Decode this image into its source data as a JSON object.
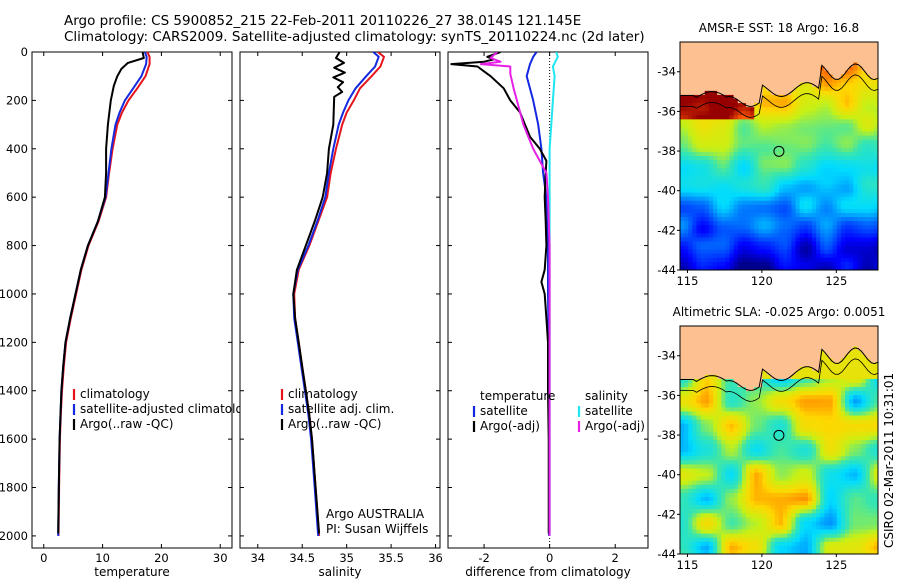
{
  "header": {
    "line1": "Argo profile: CS 5900852_215 22-Feb-2011 20110226_27 38.014S 121.145E",
    "line2": "Climatology: CARS2009. Satellite-adjusted climatology: synTS_20110224.nc (2d later)"
  },
  "colors": {
    "red": "#e8141c",
    "blue": "#1428e0",
    "black": "#000000",
    "magenta": "#e620e6",
    "cyan": "#20e6f0",
    "land": "#fcc091"
  },
  "chart_data": [
    {
      "type": "line",
      "xlabel": "temperature",
      "ylabel": "",
      "xlim": [
        -2,
        32
      ],
      "ylim": [
        0,
        2050
      ],
      "y_reversed": true,
      "xticks": [
        0,
        10,
        20,
        30
      ],
      "yticks": [
        0,
        200,
        400,
        600,
        800,
        1000,
        1200,
        1400,
        1600,
        1800,
        2000
      ],
      "legend": {
        "position": "lower-right",
        "entries": [
          "climatology",
          "satellite-adjusted climatology",
          "Argo(..raw -QC)"
        ]
      },
      "series": [
        {
          "name": "climatology",
          "color": "red",
          "points": [
            [
              17.6,
              0
            ],
            [
              18.0,
              20
            ],
            [
              18.0,
              50
            ],
            [
              17.3,
              100
            ],
            [
              15.9,
              150
            ],
            [
              14.4,
              200
            ],
            [
              13.3,
              250
            ],
            [
              12.5,
              300
            ],
            [
              11.7,
              400
            ],
            [
              11.1,
              500
            ],
            [
              10.6,
              600
            ],
            [
              9.3,
              700
            ],
            [
              7.6,
              800
            ],
            [
              6.4,
              900
            ],
            [
              5.5,
              1000
            ],
            [
              4.6,
              1100
            ],
            [
              3.8,
              1200
            ],
            [
              3.4,
              1300
            ],
            [
              3.1,
              1400
            ],
            [
              2.9,
              1500
            ],
            [
              2.75,
              1600
            ],
            [
              2.6,
              1800
            ],
            [
              2.5,
              2000
            ]
          ]
        },
        {
          "name": "satellite-adjusted climatology",
          "color": "blue",
          "points": [
            [
              17.2,
              0
            ],
            [
              17.5,
              20
            ],
            [
              17.4,
              50
            ],
            [
              16.6,
              100
            ],
            [
              15.2,
              150
            ],
            [
              13.8,
              200
            ],
            [
              12.9,
              250
            ],
            [
              12.2,
              300
            ],
            [
              11.5,
              400
            ],
            [
              11.0,
              500
            ],
            [
              10.5,
              600
            ],
            [
              9.2,
              700
            ],
            [
              7.5,
              800
            ],
            [
              6.3,
              900
            ],
            [
              5.4,
              1000
            ],
            [
              4.5,
              1100
            ],
            [
              3.7,
              1200
            ],
            [
              3.3,
              1300
            ],
            [
              3.0,
              1400
            ],
            [
              2.85,
              1500
            ],
            [
              2.7,
              1600
            ],
            [
              2.55,
              1800
            ],
            [
              2.45,
              2000
            ]
          ]
        },
        {
          "name": "Argo(..raw -QC)",
          "color": "black",
          "points": [
            [
              16.8,
              0
            ],
            [
              17.0,
              25
            ],
            [
              14.3,
              45
            ],
            [
              13.2,
              70
            ],
            [
              12.5,
              100
            ],
            [
              11.9,
              140
            ],
            [
              11.4,
              200
            ],
            [
              10.9,
              300
            ],
            [
              10.6,
              400
            ],
            [
              10.6,
              500
            ],
            [
              10.4,
              600
            ],
            [
              9.2,
              700
            ],
            [
              7.5,
              800
            ],
            [
              6.3,
              900
            ],
            [
              5.4,
              1000
            ],
            [
              4.5,
              1100
            ],
            [
              3.7,
              1200
            ],
            [
              3.3,
              1300
            ],
            [
              3.0,
              1400
            ],
            [
              2.85,
              1500
            ],
            [
              2.7,
              1600
            ],
            [
              2.55,
              1800
            ],
            [
              2.45,
              1990
            ]
          ]
        }
      ]
    },
    {
      "type": "line",
      "xlabel": "salinity",
      "ylabel": "",
      "xlim": [
        33.8,
        36.05
      ],
      "ylim": [
        0,
        2050
      ],
      "y_reversed": true,
      "xticks": [
        34,
        34.5,
        35,
        35.5,
        36
      ],
      "legend": {
        "position": "lower-right",
        "entries": [
          "climatology",
          "satellite adj. clim.",
          "Argo(..raw -QC)"
        ]
      },
      "annotation": [
        "Argo AUSTRALIA",
        "PI: Susan Wijffels"
      ],
      "series": [
        {
          "name": "climatology",
          "color": "red",
          "points": [
            [
              35.35,
              0
            ],
            [
              35.42,
              20
            ],
            [
              35.38,
              60
            ],
            [
              35.28,
              100
            ],
            [
              35.15,
              150
            ],
            [
              35.08,
              200
            ],
            [
              35.0,
              250
            ],
            [
              34.95,
              300
            ],
            [
              34.88,
              400
            ],
            [
              34.82,
              500
            ],
            [
              34.78,
              600
            ],
            [
              34.68,
              700
            ],
            [
              34.58,
              800
            ],
            [
              34.46,
              900
            ],
            [
              34.41,
              1000
            ],
            [
              34.42,
              1100
            ],
            [
              34.46,
              1200
            ],
            [
              34.5,
              1300
            ],
            [
              34.54,
              1400
            ],
            [
              34.58,
              1500
            ],
            [
              34.61,
              1600
            ],
            [
              34.65,
              1800
            ],
            [
              34.69,
              2000
            ]
          ]
        },
        {
          "name": "satellite adj. clim.",
          "color": "blue",
          "points": [
            [
              35.3,
              0
            ],
            [
              35.36,
              20
            ],
            [
              35.32,
              60
            ],
            [
              35.22,
              100
            ],
            [
              35.1,
              150
            ],
            [
              35.02,
              200
            ],
            [
              34.96,
              250
            ],
            [
              34.91,
              300
            ],
            [
              34.85,
              400
            ],
            [
              34.8,
              500
            ],
            [
              34.76,
              600
            ],
            [
              34.67,
              700
            ],
            [
              34.57,
              800
            ],
            [
              34.45,
              900
            ],
            [
              34.4,
              1000
            ],
            [
              34.41,
              1100
            ],
            [
              34.45,
              1200
            ],
            [
              34.49,
              1300
            ],
            [
              34.53,
              1400
            ],
            [
              34.57,
              1500
            ],
            [
              34.6,
              1600
            ],
            [
              34.64,
              1800
            ],
            [
              34.68,
              2000
            ]
          ]
        },
        {
          "name": "Argo(..raw -QC)",
          "color": "black",
          "points": [
            [
              34.92,
              0
            ],
            [
              34.88,
              25
            ],
            [
              34.97,
              45
            ],
            [
              34.86,
              65
            ],
            [
              34.98,
              85
            ],
            [
              34.85,
              105
            ],
            [
              34.96,
              125
            ],
            [
              34.9,
              145
            ],
            [
              34.95,
              165
            ],
            [
              34.86,
              185
            ],
            [
              34.85,
              300
            ],
            [
              34.8,
              400
            ],
            [
              34.78,
              500
            ],
            [
              34.73,
              600
            ],
            [
              34.64,
              700
            ],
            [
              34.54,
              800
            ],
            [
              34.44,
              900
            ],
            [
              34.4,
              1000
            ],
            [
              34.42,
              1100
            ],
            [
              34.46,
              1200
            ],
            [
              34.5,
              1300
            ],
            [
              34.54,
              1400
            ],
            [
              34.58,
              1500
            ],
            [
              34.61,
              1600
            ],
            [
              34.65,
              1800
            ],
            [
              34.69,
              1990
            ]
          ]
        }
      ]
    },
    {
      "type": "line",
      "xlabel": "difference from climatology",
      "ylabel": "",
      "xlim": [
        -3.1,
        3.0
      ],
      "ylim": [
        0,
        2050
      ],
      "y_reversed": true,
      "xticks": [
        -2,
        0,
        2
      ],
      "legend": {
        "position": "lower-right",
        "groups": [
          "temperature",
          "salinity"
        ],
        "entries": [
          "satellite",
          "Argo(-adj)",
          "satellite",
          "Argo(-adj)"
        ]
      },
      "series": [
        {
          "name": "satellite",
          "group": "temperature",
          "color": "blue",
          "points": [
            [
              -0.4,
              0
            ],
            [
              -0.5,
              20
            ],
            [
              -0.6,
              50
            ],
            [
              -0.7,
              100
            ],
            [
              -0.5,
              200
            ],
            [
              -0.35,
              300
            ],
            [
              -0.25,
              400
            ],
            [
              -0.2,
              500
            ],
            [
              -0.1,
              600
            ],
            [
              -0.08,
              700
            ],
            [
              -0.05,
              800
            ],
            [
              -0.05,
              900
            ],
            [
              -0.05,
              1000
            ],
            [
              -0.03,
              1200
            ],
            [
              -0.02,
              1400
            ],
            [
              -0.02,
              1600
            ],
            [
              -0.02,
              2000
            ]
          ]
        },
        {
          "name": "Argo(-adj)",
          "group": "temperature",
          "color": "black",
          "points": [
            [
              -1.5,
              0
            ],
            [
              -1.9,
              20
            ],
            [
              -1.7,
              30
            ],
            [
              -2.0,
              40
            ],
            [
              -3.0,
              50
            ],
            [
              -2.2,
              60
            ],
            [
              -2.0,
              80
            ],
            [
              -1.8,
              100
            ],
            [
              -1.4,
              150
            ],
            [
              -1.2,
              200
            ],
            [
              -0.9,
              250
            ],
            [
              -0.75,
              300
            ],
            [
              -0.6,
              350
            ],
            [
              -0.3,
              400
            ],
            [
              -0.1,
              450
            ],
            [
              -0.12,
              500
            ],
            [
              -0.15,
              600
            ],
            [
              -0.12,
              700
            ],
            [
              -0.1,
              800
            ],
            [
              -0.15,
              900
            ],
            [
              -0.25,
              950
            ],
            [
              -0.15,
              1000
            ],
            [
              -0.1,
              1100
            ],
            [
              -0.05,
              1200
            ],
            [
              -0.05,
              1400
            ],
            [
              -0.03,
              1600
            ],
            [
              -0.03,
              1990
            ]
          ]
        },
        {
          "name": "satellite",
          "group": "salinity",
          "color": "cyan",
          "points": [
            [
              0.2,
              0
            ],
            [
              0.25,
              20
            ],
            [
              0.1,
              60
            ],
            [
              0.15,
              100
            ],
            [
              0.1,
              200
            ],
            [
              0.05,
              300
            ],
            [
              0.0,
              400
            ],
            [
              0.0,
              500
            ],
            [
              0.0,
              600
            ],
            [
              0.0,
              800
            ],
            [
              0.0,
              1000
            ],
            [
              0.0,
              1500
            ],
            [
              0.0,
              2000
            ]
          ]
        },
        {
          "name": "Argo(-adj)",
          "group": "salinity",
          "color": "magenta",
          "points": [
            [
              -1.6,
              0
            ],
            [
              -1.8,
              25
            ],
            [
              -1.5,
              40
            ],
            [
              -2.1,
              50
            ],
            [
              -1.2,
              60
            ],
            [
              -1.2,
              90
            ],
            [
              -1.1,
              150
            ],
            [
              -1.0,
              200
            ],
            [
              -0.8,
              300
            ],
            [
              -0.5,
              400
            ],
            [
              -0.3,
              450
            ],
            [
              -0.1,
              500
            ],
            [
              -0.05,
              600
            ],
            [
              0.0,
              800
            ],
            [
              0.0,
              1000
            ],
            [
              0.0,
              1500
            ],
            [
              0.0,
              2000
            ]
          ]
        }
      ]
    },
    {
      "type": "heatmap",
      "title": "AMSR-E SST: 18  Argo: 16.8",
      "xlim": [
        114.5,
        127.8
      ],
      "ylim": [
        -44,
        -32.5
      ],
      "xticks": [
        115,
        120,
        125
      ],
      "yticks": [
        -34,
        -36,
        -38,
        -40,
        -42,
        -44
      ],
      "marker": {
        "lon": 121.145,
        "lat": -38.014
      }
    },
    {
      "type": "heatmap",
      "title": "Altimetric SLA: -0.025  Argo: 0.0051",
      "xlim": [
        114.5,
        127.8
      ],
      "ylim": [
        -44,
        -32.5
      ],
      "xticks": [
        115,
        120,
        125
      ],
      "yticks": [
        -34,
        -36,
        -38,
        -40,
        -42,
        -44
      ],
      "marker": {
        "lon": 121.145,
        "lat": -38.014
      }
    }
  ],
  "side_stamp": "CSIRO 02-Mar-2011 10:31:01"
}
